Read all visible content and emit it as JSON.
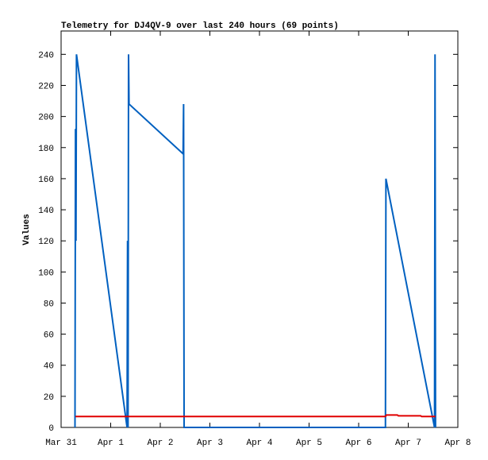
{
  "chart_data": {
    "type": "line",
    "title": "Telemetry for DJ4QV-9 over last 240 hours (69 points)",
    "y_label": "Values",
    "xlim": [
      0,
      8
    ],
    "xticks": [
      {
        "value": 0,
        "label": "Mar 31"
      },
      {
        "value": 1,
        "label": "Apr 1"
      },
      {
        "value": 2,
        "label": "Apr 2"
      },
      {
        "value": 3,
        "label": "Apr 3"
      },
      {
        "value": 4,
        "label": "Apr 4"
      },
      {
        "value": 5,
        "label": "Apr 5"
      },
      {
        "value": 6,
        "label": "Apr 6"
      },
      {
        "value": 7,
        "label": "Apr 7"
      },
      {
        "value": 8,
        "label": "Apr 8"
      }
    ],
    "ylim": [
      0,
      255
    ],
    "yticks": [
      0,
      20,
      40,
      60,
      80,
      100,
      120,
      140,
      160,
      180,
      200,
      220,
      240
    ],
    "series": [
      {
        "color": "#0060c0",
        "x": [
          0.28,
          0.29,
          0.3,
          0.31,
          1.33,
          1.34,
          1.35,
          1.36,
          1.37,
          2.46,
          2.47,
          2.48,
          6.54,
          6.55,
          7.53,
          7.54,
          7.55
        ],
        "values": [
          0,
          192,
          120,
          240,
          0,
          120,
          0,
          240,
          208,
          176,
          208,
          0,
          0,
          160,
          0,
          240,
          0
        ]
      },
      {
        "color": "#e00000",
        "x": [
          0.29,
          6.54,
          6.56,
          6.78,
          6.8,
          7.25,
          7.27,
          7.55
        ],
        "values": [
          7,
          7,
          8,
          8,
          7.5,
          7.5,
          7,
          7
        ]
      }
    ]
  }
}
